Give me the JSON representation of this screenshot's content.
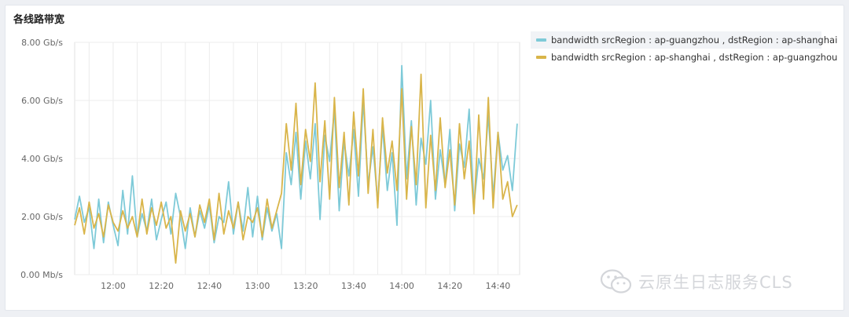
{
  "panel": {
    "title": "各线路带宽"
  },
  "watermark": {
    "text": "云原生日志服务CLS",
    "icon": "wechat-icon"
  },
  "colors": {
    "series1": "#7ecad8",
    "series2": "#d9b54a",
    "grid": "#ececec",
    "axis_text": "#666666"
  },
  "chart_data": {
    "type": "line",
    "title": "各线路带宽",
    "xlabel": "",
    "ylabel": "",
    "x_range": [
      "11:44",
      "14:49"
    ],
    "ylim": [
      0,
      8
    ],
    "y_unit": "Gb/s",
    "y_ticks": [
      {
        "value": 0,
        "label": "0.00 Mb/s"
      },
      {
        "value": 2,
        "label": "2.00 Gb/s"
      },
      {
        "value": 4,
        "label": "4.00 Gb/s"
      },
      {
        "value": 6,
        "label": "6.00 Gb/s"
      },
      {
        "value": 8,
        "label": "8.00 Gb/s"
      }
    ],
    "x_ticks": [
      {
        "value": "12:00",
        "label": "12:00"
      },
      {
        "value": "12:20",
        "label": "12:20"
      },
      {
        "value": "12:40",
        "label": "12:40"
      },
      {
        "value": "13:00",
        "label": "13:00"
      },
      {
        "value": "13:20",
        "label": "13:20"
      },
      {
        "value": "13:40",
        "label": "13:40"
      },
      {
        "value": "14:00",
        "label": "14:00"
      },
      {
        "value": "14:20",
        "label": "14:20"
      },
      {
        "value": "14:40",
        "label": "14:40"
      }
    ],
    "grid": true,
    "legend_position": "right",
    "series": [
      {
        "name": "bandwidth srcRegion : ap-guangzhou , dstRegion : ap-shanghai",
        "color": "#7ecad8",
        "x": [
          "11:44",
          "11:46",
          "11:48",
          "11:50",
          "11:52",
          "11:54",
          "11:56",
          "11:58",
          "12:00",
          "12:02",
          "12:04",
          "12:06",
          "12:08",
          "12:10",
          "12:12",
          "12:14",
          "12:16",
          "12:18",
          "12:20",
          "12:22",
          "12:24",
          "12:26",
          "12:28",
          "12:30",
          "12:32",
          "12:34",
          "12:36",
          "12:38",
          "12:40",
          "12:42",
          "12:44",
          "12:46",
          "12:48",
          "12:50",
          "12:52",
          "12:54",
          "12:56",
          "12:58",
          "13:00",
          "13:02",
          "13:04",
          "13:06",
          "13:08",
          "13:10",
          "13:12",
          "13:14",
          "13:16",
          "13:18",
          "13:20",
          "13:22",
          "13:24",
          "13:26",
          "13:28",
          "13:30",
          "13:32",
          "13:34",
          "13:36",
          "13:38",
          "13:40",
          "13:42",
          "13:44",
          "13:46",
          "13:48",
          "13:50",
          "13:52",
          "13:54",
          "13:56",
          "13:58",
          "14:00",
          "14:02",
          "14:04",
          "14:06",
          "14:08",
          "14:10",
          "14:12",
          "14:14",
          "14:16",
          "14:18",
          "14:20",
          "14:22",
          "14:24",
          "14:26",
          "14:28",
          "14:30",
          "14:32",
          "14:34",
          "14:36",
          "14:38",
          "14:40",
          "14:42",
          "14:44",
          "14:46",
          "14:48"
        ],
        "values": [
          1.9,
          2.7,
          1.8,
          2.3,
          0.9,
          2.6,
          1.1,
          2.5,
          1.7,
          1.0,
          2.9,
          1.4,
          3.4,
          1.3,
          2.1,
          1.5,
          2.6,
          1.2,
          1.9,
          2.5,
          1.4,
          2.8,
          2.0,
          0.9,
          2.3,
          1.3,
          2.2,
          1.6,
          2.4,
          1.1,
          2.0,
          1.8,
          3.2,
          1.4,
          2.5,
          1.5,
          3.0,
          1.3,
          2.7,
          1.2,
          2.3,
          1.5,
          2.1,
          0.9,
          4.2,
          3.1,
          4.9,
          2.6,
          4.6,
          3.3,
          5.2,
          1.9,
          4.8,
          3.9,
          5.7,
          2.2,
          4.6,
          3.4,
          5.0,
          2.7,
          6.0,
          3.1,
          4.4,
          2.5,
          5.1,
          2.9,
          4.2,
          1.7,
          7.2,
          3.3,
          5.3,
          2.4,
          4.7,
          3.8,
          6.0,
          2.6,
          4.3,
          3.1,
          5.0,
          2.2,
          4.5,
          3.7,
          5.7,
          2.4,
          4.0,
          3.3,
          5.5,
          2.7,
          4.9,
          3.6,
          4.1,
          2.9,
          5.2
        ]
      },
      {
        "name": "bandwidth srcRegion : ap-shanghai , dstRegion : ap-guangzhou",
        "color": "#d9b54a",
        "x": [
          "11:44",
          "11:46",
          "11:48",
          "11:50",
          "11:52",
          "11:54",
          "11:56",
          "11:58",
          "12:00",
          "12:02",
          "12:04",
          "12:06",
          "12:08",
          "12:10",
          "12:12",
          "12:14",
          "12:16",
          "12:18",
          "12:20",
          "12:22",
          "12:24",
          "12:26",
          "12:28",
          "12:30",
          "12:32",
          "12:34",
          "12:36",
          "12:38",
          "12:40",
          "12:42",
          "12:44",
          "12:46",
          "12:48",
          "12:50",
          "12:52",
          "12:54",
          "12:56",
          "12:58",
          "13:00",
          "13:02",
          "13:04",
          "13:06",
          "13:08",
          "13:10",
          "13:12",
          "13:14",
          "13:16",
          "13:18",
          "13:20",
          "13:22",
          "13:24",
          "13:26",
          "13:28",
          "13:30",
          "13:32",
          "13:34",
          "13:36",
          "13:38",
          "13:40",
          "13:42",
          "13:44",
          "13:46",
          "13:48",
          "13:50",
          "13:52",
          "13:54",
          "13:56",
          "13:58",
          "14:00",
          "14:02",
          "14:04",
          "14:06",
          "14:08",
          "14:10",
          "14:12",
          "14:14",
          "14:16",
          "14:18",
          "14:20",
          "14:22",
          "14:24",
          "14:26",
          "14:28",
          "14:30",
          "14:32",
          "14:34",
          "14:36",
          "14:38",
          "14:40",
          "14:42",
          "14:44",
          "14:46",
          "14:48"
        ],
        "values": [
          1.7,
          2.3,
          1.4,
          2.5,
          1.6,
          2.1,
          1.3,
          2.4,
          1.8,
          1.5,
          2.2,
          1.6,
          2.0,
          1.3,
          2.6,
          1.4,
          2.3,
          1.7,
          2.5,
          1.6,
          2.0,
          0.4,
          2.2,
          1.5,
          2.1,
          1.3,
          2.4,
          1.8,
          2.6,
          1.2,
          2.8,
          1.4,
          2.2,
          1.6,
          2.5,
          1.2,
          2.0,
          1.8,
          2.3,
          1.3,
          2.6,
          1.6,
          2.2,
          2.8,
          5.2,
          3.6,
          5.9,
          3.1,
          5.0,
          3.9,
          6.6,
          3.2,
          5.3,
          2.6,
          6.1,
          3.0,
          4.9,
          2.4,
          5.6,
          3.4,
          6.4,
          2.8,
          5.0,
          2.3,
          5.4,
          3.5,
          4.6,
          2.9,
          6.4,
          2.6,
          5.1,
          3.1,
          6.9,
          2.3,
          4.8,
          2.9,
          5.4,
          3.0,
          4.3,
          2.4,
          5.2,
          3.3,
          4.6,
          2.1,
          5.5,
          2.6,
          6.1,
          2.3,
          4.9,
          2.6,
          3.2,
          2.0,
          2.4
        ]
      }
    ]
  }
}
